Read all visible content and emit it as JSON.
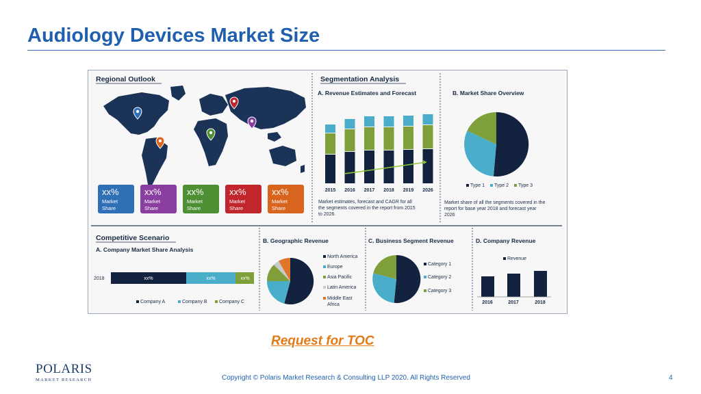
{
  "slide": {
    "title": "Audiology Devices Market Size",
    "page_number": "4",
    "copyright": "Copyright © Polaris Market Research & Consulting LLP 2020. All Rights Reserved",
    "toc_link": "Request for TOC",
    "logo": {
      "main": "POLARIS",
      "sub": "MARKET RESEARCH"
    }
  },
  "infographic": {
    "regional_outlook": {
      "title": "Regional Outlook",
      "cards": [
        {
          "value": "xx%",
          "label1": "Market",
          "label2": "Share",
          "color": "#2f6fb5"
        },
        {
          "value": "xx%",
          "label1": "Market",
          "label2": "Share",
          "color": "#8a3fa0"
        },
        {
          "value": "xx%",
          "label1": "Market",
          "label2": "Share",
          "color": "#4e8f33"
        },
        {
          "value": "xx%",
          "label1": "Market",
          "label2": "Share",
          "color": "#c0262c"
        },
        {
          "value": "xx%",
          "label1": "Market",
          "label2": "Share",
          "color": "#d9641e"
        }
      ]
    },
    "segmentation": {
      "title": "Segmentation Analysis",
      "revenue": {
        "title": "A. Revenue Estimates and Forecast",
        "years": [
          "2015",
          "2016",
          "2017",
          "2018",
          "2019",
          "2026"
        ],
        "caption": [
          "Market estimates, forecast and CAGR for all",
          "the segments covered in the report from 2015",
          "to 2026."
        ]
      },
      "share": {
        "title": "B. Market Share Overview",
        "legend": [
          "Type 1",
          "Type 2",
          "Type 3"
        ],
        "caption": [
          "Market share of all the segments covered in the",
          "report for base year 2018 and forecast year",
          "2026"
        ]
      }
    },
    "competitive": {
      "title": "Competitive Scenario",
      "subtitle": "A. Company Market Share Analysis",
      "year": "2018",
      "bar_labels": [
        "xx%",
        "xx%",
        "xx%"
      ],
      "legend": [
        "Company A",
        "Company B",
        "Company C"
      ]
    },
    "geographic": {
      "title": "B. Geographic Revenue",
      "legend": [
        "North America",
        "Europe",
        "Asia Pacific",
        "Latin America",
        "Middle East",
        "Africa"
      ]
    },
    "business_segment": {
      "title": "C. Business Segment Revenue",
      "legend": [
        "Category 1",
        "Category 2",
        "Category 3"
      ]
    },
    "company_revenue": {
      "title": "D. Company Revenue",
      "legend": "Revenue",
      "years": [
        "2016",
        "2017",
        "2018"
      ]
    },
    "colors": {
      "navy": "#13233f",
      "light_blue": "#4aaecb",
      "green": "#7e9f39",
      "orange": "#e0762a"
    }
  }
}
